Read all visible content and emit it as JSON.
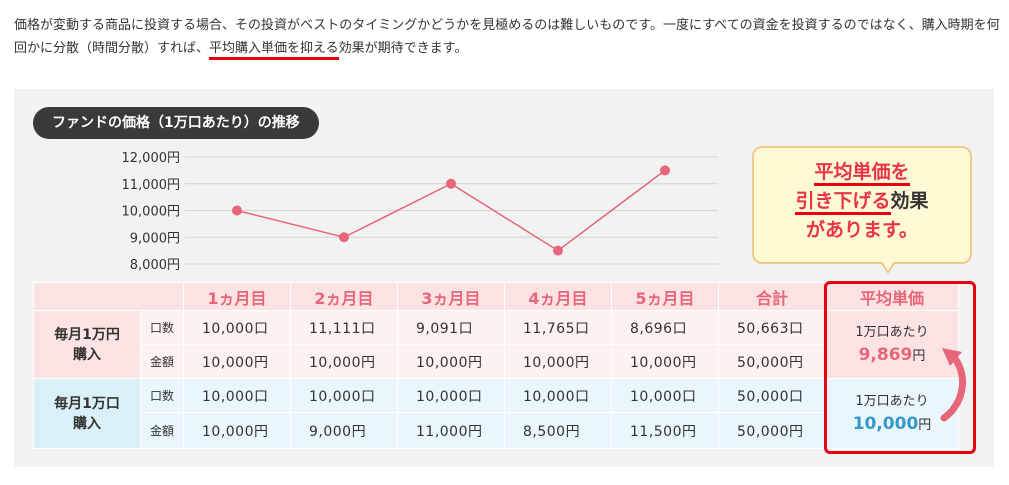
{
  "intro": {
    "text_before": "価格が変動する商品に投資する場合、その投資がベストのタイミングかどうかを見極めるのは難しいものです。一度にすべての資金を投資するのではなく、購入時期を何回かに分散（時間分散）すれば、",
    "text_underlined": "平均購入単価を抑える",
    "text_after": "効果が期待できます。"
  },
  "chart_title": "ファンドの価格（1万口あたり）の推移",
  "chart_data": {
    "type": "line",
    "title": "ファンドの価格（1万口あたり）の推移",
    "categories": [
      "1ヵ月目",
      "2ヵ月目",
      "3ヵ月目",
      "4ヵ月目",
      "5ヵ月目"
    ],
    "series": [
      {
        "name": "",
        "values": [
          10000,
          9000,
          11000,
          8500,
          11500
        ]
      }
    ],
    "ylim": [
      8000,
      12000
    ],
    "yticks": [
      "12,000円",
      "11,000円",
      "10,000円",
      "9,000円",
      "8,000円"
    ],
    "grid": true,
    "color": "#e8667a"
  },
  "table": {
    "headers": [
      "1ヵ月目",
      "2ヵ月目",
      "3ヵ月目",
      "4ヵ月目",
      "5ヵ月目",
      "合計",
      "平均単価"
    ],
    "groups": [
      {
        "label_line1": "毎月1万円",
        "label_line2": "購入",
        "rows": [
          {
            "label": "口数",
            "cells": [
              "10,000口",
              "11,111口",
              "9,091口",
              "11,765口",
              "8,696口",
              "50,663口"
            ]
          },
          {
            "label": "金額",
            "cells": [
              "10,000円",
              "10,000円",
              "10,000円",
              "10,000円",
              "10,000円",
              "50,000円"
            ]
          }
        ],
        "avg_prefix": "1万口あたり",
        "avg_value": "9,869",
        "avg_unit": "円"
      },
      {
        "label_line1": "毎月1万口",
        "label_line2": "購入",
        "rows": [
          {
            "label": "口数",
            "cells": [
              "10,000口",
              "10,000口",
              "10,000口",
              "10,000口",
              "10,000口",
              "50,000口"
            ]
          },
          {
            "label": "金額",
            "cells": [
              "10,000円",
              "9,000円",
              "11,000円",
              "8,500円",
              "11,500円",
              "50,000円"
            ]
          }
        ],
        "avg_prefix": "1万口あたり",
        "avg_value": "10,000",
        "avg_unit": "円"
      }
    ]
  },
  "callout": {
    "line1": "平均単価を",
    "line2_underlined": "引き下げる",
    "line2_rest": "効果",
    "line3": "があります。"
  },
  "colors": {
    "accent": "#e8667a",
    "blue": "#3399cc",
    "red": "#e60012"
  }
}
